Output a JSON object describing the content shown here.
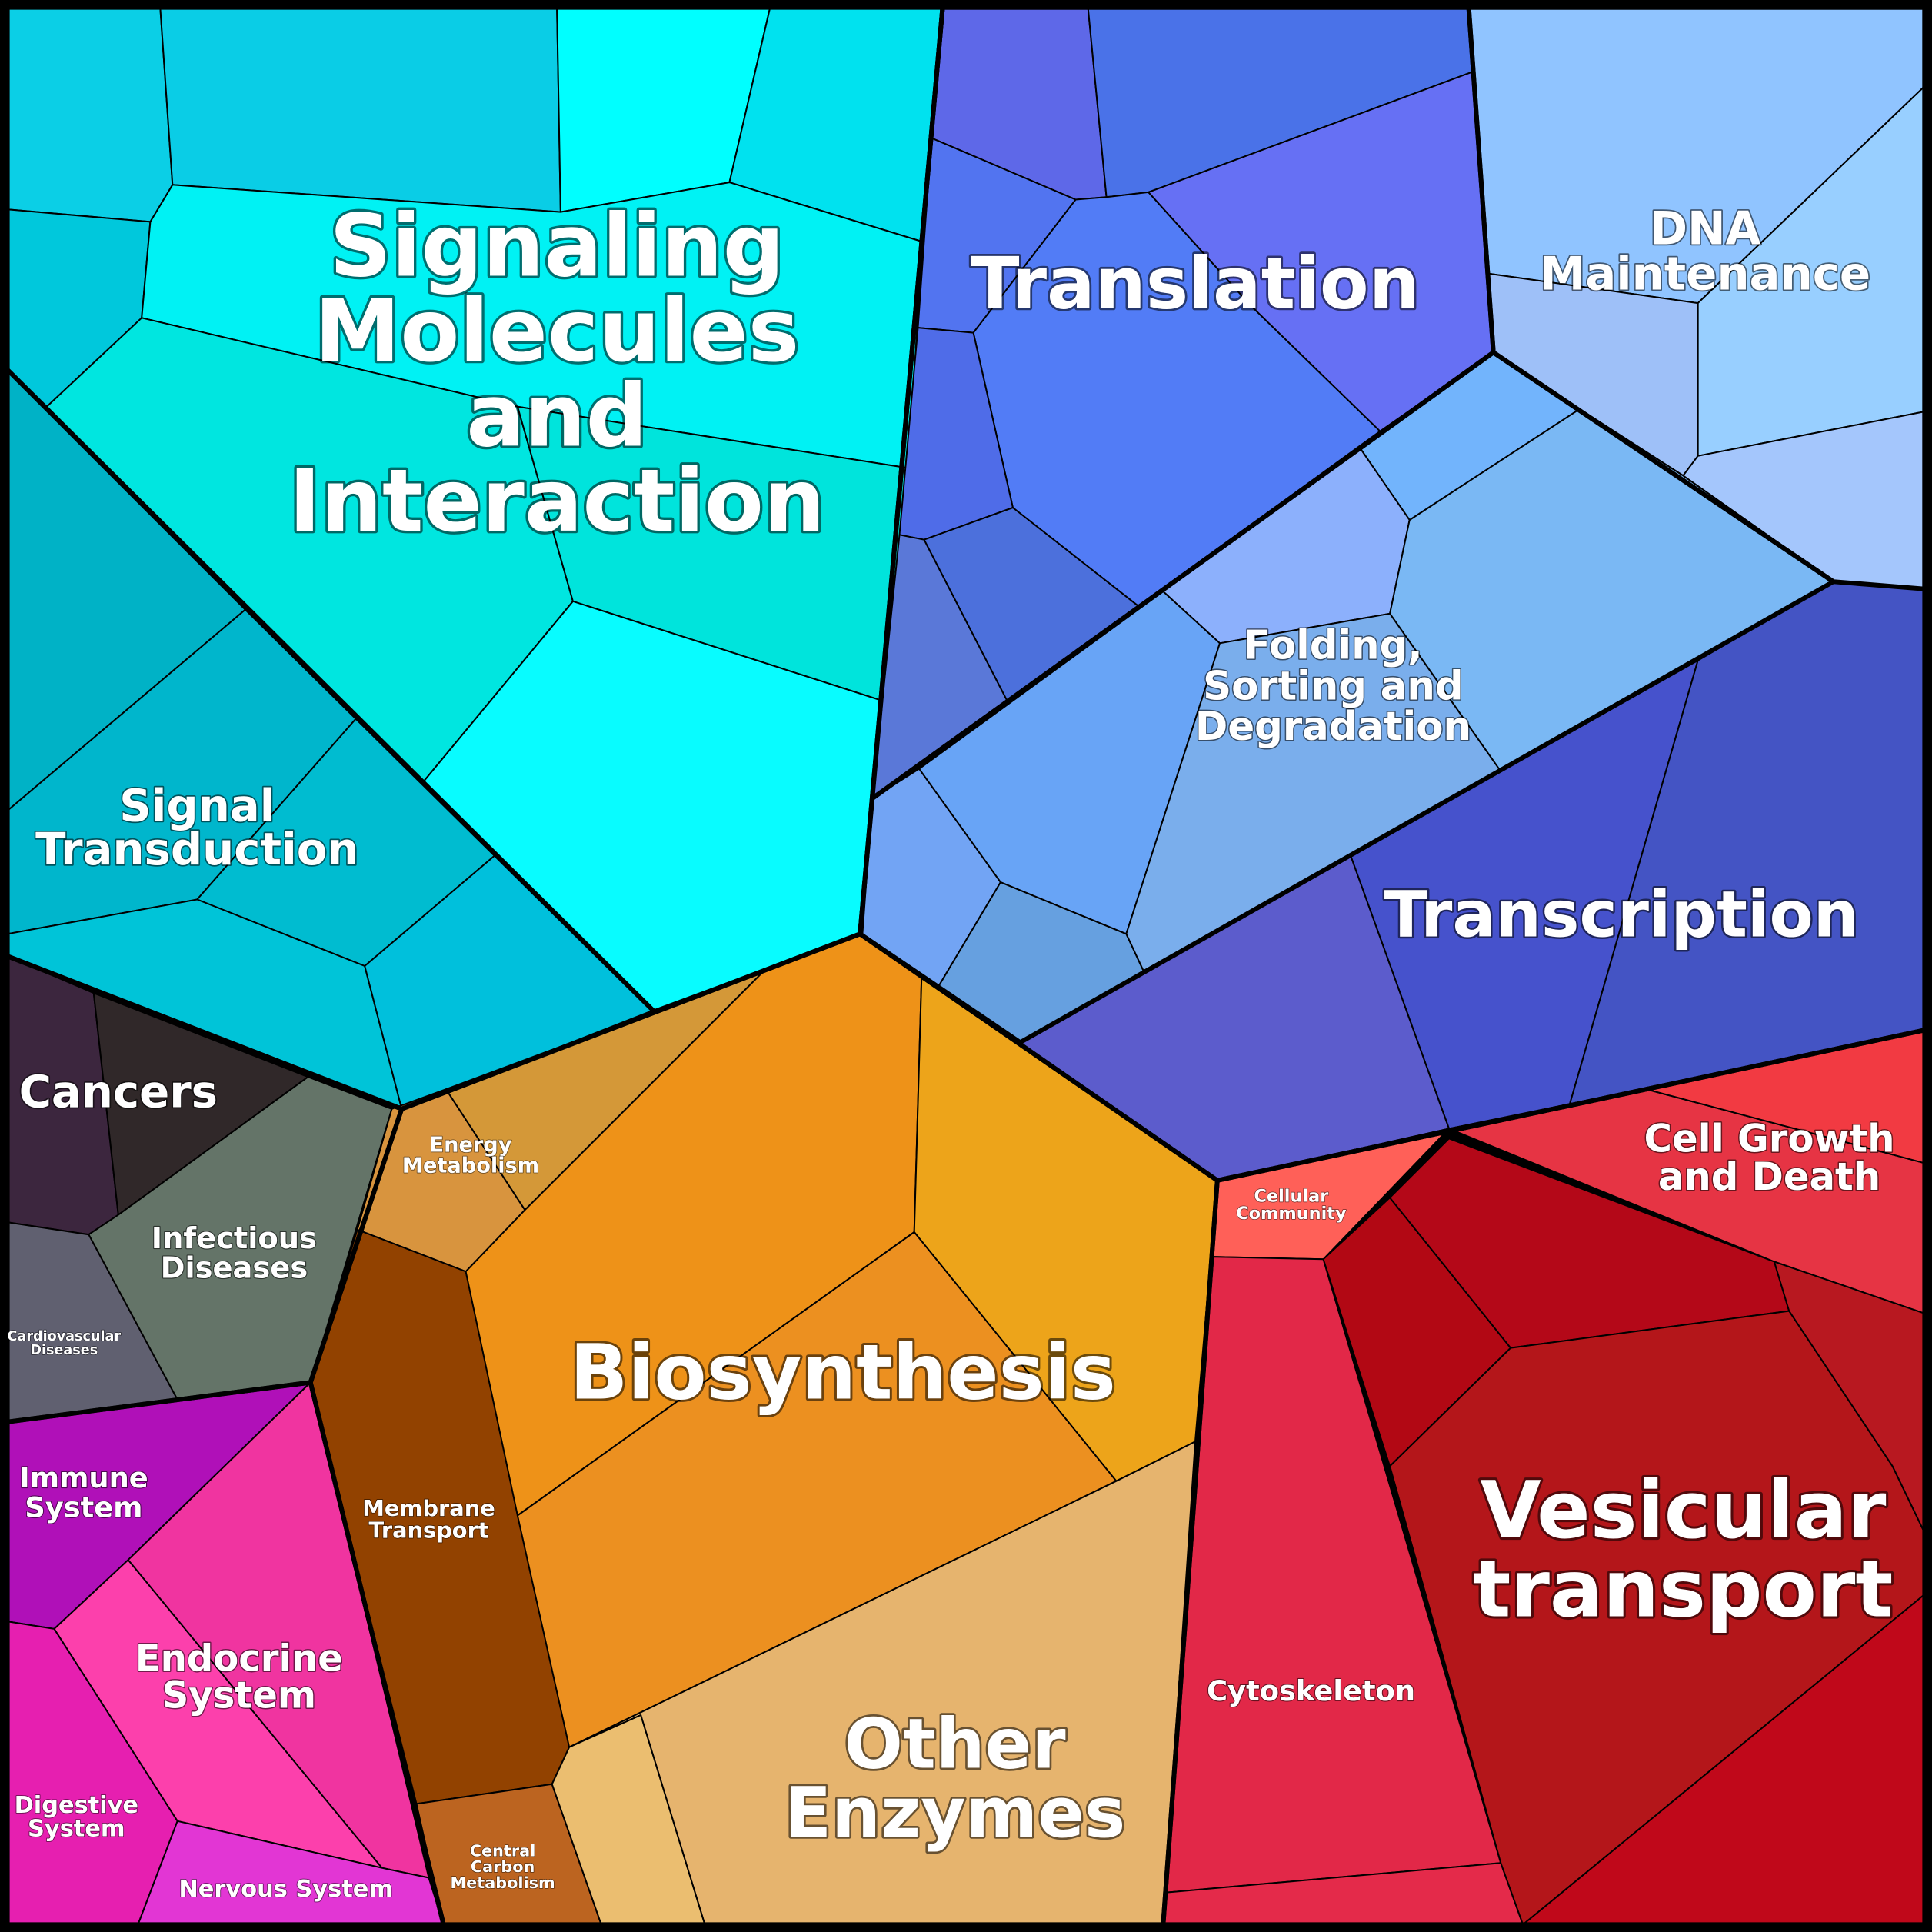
{
  "labels": {
    "signaling": [
      "Signaling",
      "Molecules",
      "and",
      "Interaction"
    ],
    "signal_transduction": [
      "Signal",
      "Transduction"
    ],
    "translation": [
      "Translation"
    ],
    "dna_maintenance": [
      "DNA",
      "Maintenance"
    ],
    "folding": [
      "Folding,",
      "Sorting and",
      "Degradation"
    ],
    "transcription": [
      "Transcription"
    ],
    "cancers": [
      "Cancers"
    ],
    "infectious": [
      "Infectious",
      "Diseases"
    ],
    "cardiovascular": [
      "Cardiovascular",
      "Diseases"
    ],
    "immune": [
      "Immune",
      "System"
    ],
    "endocrine": [
      "Endocrine",
      "System"
    ],
    "digestive": [
      "Digestive",
      "System"
    ],
    "nervous": [
      "Nervous System"
    ],
    "energy": [
      "Energy",
      "Metabolism"
    ],
    "membrane": [
      "Membrane",
      "Transport"
    ],
    "central_carbon": [
      "Central",
      "Carbon",
      "Metabolism"
    ],
    "biosynthesis": [
      "Biosynthesis"
    ],
    "other_enzymes": [
      "Other",
      "Enzymes"
    ],
    "cellular_community": [
      "Cellular",
      "Community"
    ],
    "cell_growth": [
      "Cell Growth",
      "and Death"
    ],
    "cytoskeleton": [
      "Cytoskeleton"
    ],
    "vesicular": [
      "Vesicular",
      "transport"
    ]
  },
  "colors": {
    "signaling": "#00e8f0",
    "signal_transduction": "#00bcd0",
    "translation": "#5078f0",
    "dna_maintenance": "#90c4ff",
    "folding": "#78aaf0",
    "transcription": "#4452c8",
    "cancers": "#38263e",
    "infectious": "#647468",
    "immune": "#b010b8",
    "endocrine": "#f83ea0",
    "energy": "#d8943e",
    "membrane": "#924200",
    "central_carbon": "#bc6420",
    "biosynthesis": "#ee9220",
    "other_enzymes": "#e6b46e",
    "cellular_community": "#ff6058",
    "cell_growth": "#e63444",
    "cytoskeleton": "#e22848",
    "vesicular": "#b41418"
  }
}
